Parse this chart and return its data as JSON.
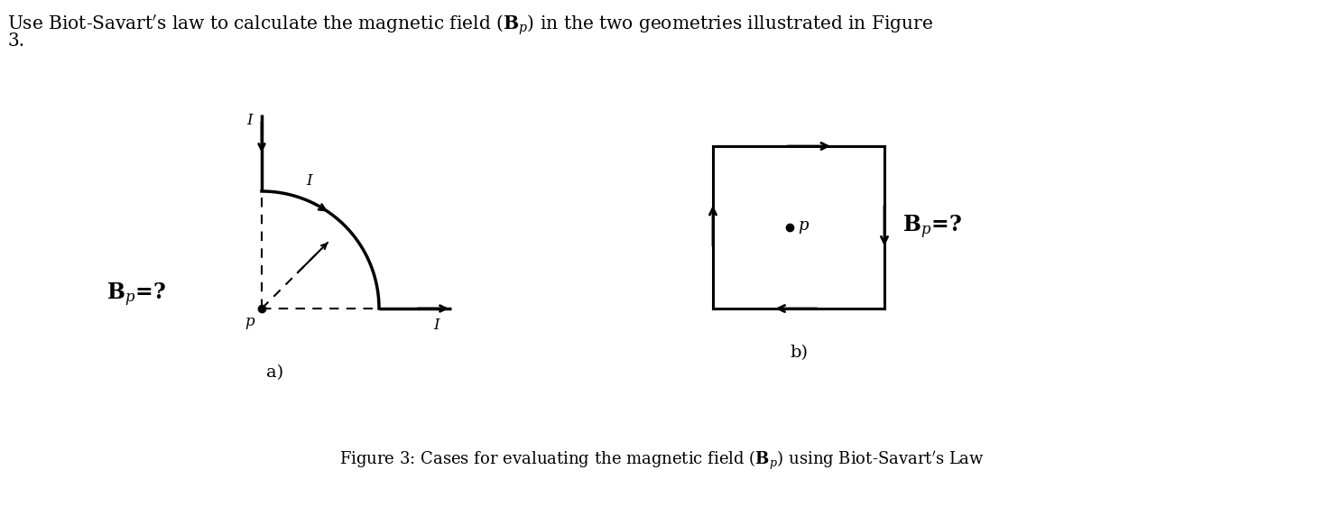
{
  "bg_color": "#ffffff",
  "title_line1": "Use Biot-Savart’s law to calculate the magnetic field (⁠𝐁⁠ₚ) in the two geometries illustrated in Figure",
  "title_line2": "3.",
  "caption_text": "Figure 3: Cases for evaluating the magnetic field (⁠𝐁⁠ₚ) using Biot-Savart’s Law",
  "diagram_a_label": "a)",
  "diagram_b_label": "b)",
  "p_label_a": "p",
  "p_label_b": "p",
  "I_label": "I",
  "Bp_label": "B",
  "fig_width": 1466,
  "fig_height": 562
}
